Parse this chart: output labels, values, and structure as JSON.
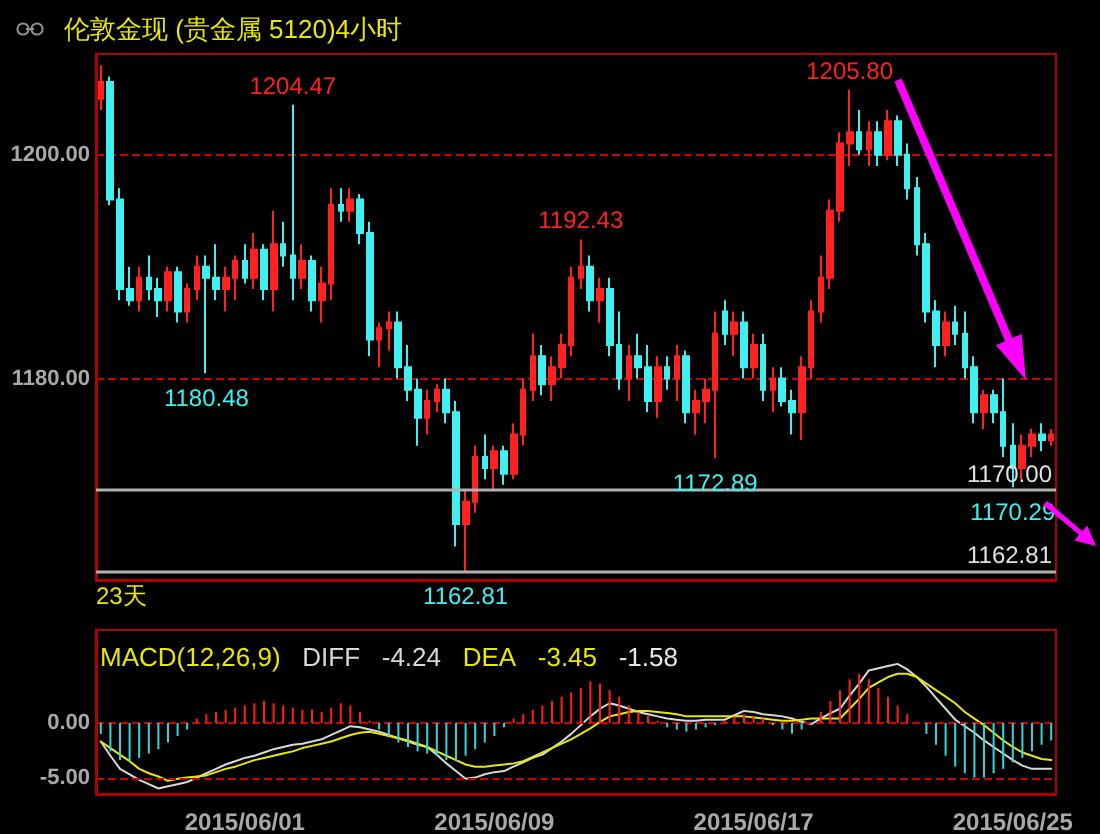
{
  "chart_data": [
    {
      "type": "candlestick",
      "title": "伦敦金现 (贵金属 5120)4小时",
      "categories": [
        null,
        null,
        null,
        null,
        null,
        null,
        null,
        null,
        null,
        null,
        null,
        null,
        null,
        null,
        null,
        "2015/06/01",
        null,
        null,
        null,
        null,
        null,
        null,
        null,
        null,
        null,
        null,
        null,
        null,
        null,
        null,
        null,
        null,
        null,
        null,
        null,
        null,
        null,
        null,
        null,
        null,
        null,
        "2015/06/09",
        null,
        null,
        null,
        null,
        null,
        null,
        null,
        null,
        null,
        null,
        null,
        null,
        null,
        null,
        null,
        null,
        null,
        null,
        null,
        null,
        null,
        null,
        null,
        null,
        null,
        null,
        "2015/06/17",
        null,
        null,
        null,
        null,
        null,
        null,
        null,
        null,
        null,
        null,
        null,
        null,
        null,
        null,
        null,
        null,
        null,
        null,
        null,
        null,
        null,
        null,
        null,
        null,
        null,
        null,
        "2015/06/25",
        null,
        null,
        null,
        null
      ],
      "ohlc": [
        [
          1205,
          1208,
          1204,
          1206.5
        ],
        [
          1206.5,
          1207,
          1195.5,
          1196
        ],
        [
          1196,
          1197,
          1187,
          1188
        ],
        [
          1188,
          1190,
          1186.5,
          1187
        ],
        [
          1187,
          1190,
          1186,
          1189
        ],
        [
          1189,
          1191,
          1187,
          1188
        ],
        [
          1188,
          1189,
          1185.5,
          1187
        ],
        [
          1187,
          1190,
          1186,
          1189.5
        ],
        [
          1189.5,
          1190,
          1185,
          1186
        ],
        [
          1186,
          1188.5,
          1185,
          1188
        ],
        [
          1188,
          1191,
          1187,
          1190
        ],
        [
          1190,
          1191,
          1180.48,
          1189
        ],
        [
          1189,
          1192,
          1187,
          1188
        ],
        [
          1188,
          1190,
          1186,
          1189
        ],
        [
          1189,
          1191,
          1187,
          1190.5
        ],
        [
          1190.5,
          1192,
          1188.5,
          1189
        ],
        [
          1189,
          1193,
          1188,
          1191.5
        ],
        [
          1191.5,
          1192,
          1187,
          1188
        ],
        [
          1188,
          1195,
          1186,
          1192
        ],
        [
          1192,
          1194,
          1190,
          1191
        ],
        [
          1191,
          1204.47,
          1187,
          1189
        ],
        [
          1189,
          1192,
          1188,
          1190.5
        ],
        [
          1190.5,
          1191,
          1186,
          1187
        ],
        [
          1187,
          1190,
          1185,
          1188.5
        ],
        [
          1188.5,
          1197,
          1187,
          1195.5
        ],
        [
          1195.5,
          1197,
          1194,
          1195
        ],
        [
          1195,
          1197,
          1194,
          1196
        ],
        [
          1196,
          1196.5,
          1192,
          1193
        ],
        [
          1193,
          1194,
          1182,
          1183.5
        ],
        [
          1183.5,
          1185,
          1181,
          1184.5
        ],
        [
          1184.5,
          1186,
          1182.5,
          1185
        ],
        [
          1185,
          1186,
          1180,
          1181
        ],
        [
          1181,
          1183,
          1178,
          1179
        ],
        [
          1179,
          1180,
          1174,
          1176.5
        ],
        [
          1176.5,
          1179,
          1175,
          1178
        ],
        [
          1178,
          1179.5,
          1177,
          1179
        ],
        [
          1179,
          1180,
          1176,
          1177
        ],
        [
          1177,
          1178,
          1165,
          1167
        ],
        [
          1167,
          1170,
          1162.81,
          1169
        ],
        [
          1169,
          1174,
          1168,
          1173
        ],
        [
          1173,
          1175,
          1171,
          1172
        ],
        [
          1172,
          1174,
          1170,
          1173.5
        ],
        [
          1173.5,
          1174,
          1170.5,
          1171.5
        ],
        [
          1171.5,
          1176,
          1171,
          1175
        ],
        [
          1175,
          1180,
          1174,
          1179
        ],
        [
          1179,
          1184,
          1178,
          1182
        ],
        [
          1182,
          1183,
          1178.5,
          1179.5
        ],
        [
          1179.5,
          1182,
          1178,
          1181
        ],
        [
          1181,
          1184,
          1180,
          1183
        ],
        [
          1183,
          1190,
          1182,
          1189
        ],
        [
          1189,
          1192.43,
          1188,
          1190
        ],
        [
          1190,
          1191,
          1186,
          1187
        ],
        [
          1187,
          1189,
          1185,
          1188
        ],
        [
          1188,
          1189,
          1182,
          1183
        ],
        [
          1183,
          1186,
          1179,
          1180
        ],
        [
          1180,
          1183,
          1178,
          1182
        ],
        [
          1182,
          1184,
          1180,
          1181
        ],
        [
          1181,
          1183,
          1177,
          1178
        ],
        [
          1178,
          1182,
          1176.5,
          1181
        ],
        [
          1181,
          1182,
          1179,
          1180
        ],
        [
          1180,
          1183,
          1178,
          1182
        ],
        [
          1182,
          1182.5,
          1176,
          1177
        ],
        [
          1177,
          1179,
          1175,
          1178
        ],
        [
          1178,
          1180,
          1176,
          1179
        ],
        [
          1179,
          1186,
          1172.89,
          1184
        ],
        [
          1186,
          1187,
          1183,
          1184
        ],
        [
          1184,
          1186,
          1182,
          1185
        ],
        [
          1185,
          1186,
          1180,
          1181
        ],
        [
          1181,
          1184,
          1180,
          1183
        ],
        [
          1183,
          1184,
          1178,
          1179
        ],
        [
          1179,
          1181,
          1177,
          1180
        ],
        [
          1180,
          1181,
          1177.5,
          1178
        ],
        [
          1178,
          1179,
          1175,
          1177
        ],
        [
          1177,
          1182,
          1174.5,
          1181
        ],
        [
          1181,
          1187,
          1180,
          1186
        ],
        [
          1186,
          1191,
          1185,
          1189
        ],
        [
          1189,
          1196,
          1188,
          1195
        ],
        [
          1195,
          1202,
          1194,
          1201
        ],
        [
          1201,
          1205.8,
          1199,
          1202
        ],
        [
          1202,
          1204,
          1200,
          1200.5
        ],
        [
          1200.5,
          1203,
          1199,
          1202
        ],
        [
          1202,
          1203,
          1199,
          1200
        ],
        [
          1200,
          1204,
          1199.5,
          1203
        ],
        [
          1203,
          1203.5,
          1199,
          1200
        ],
        [
          1200,
          1201,
          1196,
          1197
        ],
        [
          1197,
          1198,
          1191,
          1192
        ],
        [
          1192,
          1193,
          1185,
          1186
        ],
        [
          1186,
          1187,
          1181,
          1183
        ],
        [
          1183,
          1186,
          1182,
          1185
        ],
        [
          1185,
          1186.5,
          1183,
          1184
        ],
        [
          1184,
          1186,
          1180,
          1181
        ],
        [
          1181,
          1182,
          1176,
          1177
        ],
        [
          1177,
          1179,
          1175.5,
          1178.5
        ],
        [
          1178.5,
          1179,
          1176,
          1177
        ],
        [
          1177,
          1180,
          1173,
          1174
        ],
        [
          1174,
          1176,
          1170.29,
          1172
        ],
        [
          1172,
          1175,
          1171,
          1174
        ],
        [
          1174,
          1175.5,
          1173,
          1175
        ],
        [
          1175,
          1176,
          1173.5,
          1174.5
        ],
        [
          1174.5,
          1175.5,
          1174,
          1175
        ]
      ],
      "colors": [
        "#ff2020",
        "#40f0f0",
        "#40f0f0",
        "#40f0f0",
        "#ff2020",
        "#40f0f0",
        "#40f0f0",
        "#ff2020",
        "#40f0f0",
        "#ff2020",
        "#ff2020",
        "#40f0f0",
        "#40f0f0",
        "#ff2020",
        "#ff2020",
        "#40f0f0",
        "#ff2020",
        "#40f0f0",
        "#ff2020",
        "#40f0f0",
        "#40f0f0",
        "#ff2020",
        "#40f0f0",
        "#ff2020",
        "#ff2020",
        "#40f0f0",
        "#ff2020",
        "#40f0f0",
        "#40f0f0",
        "#ff2020",
        "#ff2020",
        "#40f0f0",
        "#40f0f0",
        "#40f0f0",
        "#ff2020",
        "#ff2020",
        "#40f0f0",
        "#40f0f0",
        "#ff2020",
        "#ff2020",
        "#40f0f0",
        "#ff2020",
        "#40f0f0",
        "#ff2020",
        "#ff2020",
        "#ff2020",
        "#40f0f0",
        "#ff2020",
        "#ff2020",
        "#ff2020",
        "#ff2020",
        "#40f0f0",
        "#ff2020",
        "#40f0f0",
        "#40f0f0",
        "#ff2020",
        "#40f0f0",
        "#40f0f0",
        "#ff2020",
        "#40f0f0",
        "#ff2020",
        "#40f0f0",
        "#ff2020",
        "#ff2020",
        "#ff2020",
        "#40f0f0",
        "#ff2020",
        "#40f0f0",
        "#ff2020",
        "#40f0f0",
        "#ff2020",
        "#40f0f0",
        "#40f0f0",
        "#ff2020",
        "#ff2020",
        "#ff2020",
        "#ff2020",
        "#ff2020",
        "#ff2020",
        "#40f0f0",
        "#ff2020",
        "#40f0f0",
        "#ff2020",
        "#40f0f0",
        "#40f0f0",
        "#40f0f0",
        "#40f0f0",
        "#40f0f0",
        "#ff2020",
        "#40f0f0",
        "#40f0f0",
        "#40f0f0",
        "#ff2020",
        "#40f0f0",
        "#40f0f0",
        "#40f0f0",
        "#ff2020",
        "#ff2020",
        "#40f0f0",
        "#ff2020"
      ],
      "value_labels": [
        null,
        null,
        null,
        null,
        null,
        null,
        null,
        null,
        null,
        null,
        null,
        "1180.48",
        null,
        null,
        null,
        null,
        null,
        null,
        null,
        null,
        "1204.47",
        null,
        null,
        null,
        null,
        null,
        null,
        null,
        null,
        null,
        null,
        null,
        null,
        null,
        null,
        null,
        null,
        null,
        "1162.81",
        null,
        null,
        null,
        null,
        null,
        null,
        null,
        null,
        null,
        null,
        null,
        "1192.43",
        null,
        null,
        null,
        null,
        null,
        null,
        null,
        null,
        null,
        null,
        null,
        null,
        null,
        "1172.89",
        null,
        null,
        null,
        null,
        null,
        null,
        null,
        null,
        null,
        null,
        null,
        null,
        null,
        "1205.80",
        null,
        null,
        null,
        null,
        null,
        null,
        null,
        null,
        null,
        null,
        null,
        null,
        null,
        null,
        null,
        null,
        "1170.29",
        null,
        null,
        null,
        null
      ],
      "ylim": [
        1162,
        1209
      ],
      "yticks": [
        {
          "value": 1180,
          "label": "1180.00"
        },
        {
          "value": 1200,
          "label": "1200.00"
        }
      ],
      "grid": "y",
      "tick_labels": "y",
      "ref_lines": [
        {
          "axis": "y",
          "value": 1170,
          "label": "1170.00",
          "color": "#b0b0b0"
        },
        {
          "axis": "y",
          "value": 1162.81,
          "label": "1162.81",
          "color": "#b0b0b0"
        }
      ],
      "annotations": [
        "23天"
      ]
    },
    {
      "type": "line",
      "title": "MACD(12,26,9)",
      "categories": [
        null,
        null,
        null,
        null,
        null,
        null,
        null,
        null,
        null,
        null,
        null,
        null,
        null,
        null,
        null,
        "2015/06/01",
        null,
        null,
        null,
        null,
        null,
        null,
        null,
        null,
        null,
        null,
        null,
        null,
        null,
        null,
        null,
        null,
        null,
        null,
        null,
        null,
        null,
        null,
        null,
        null,
        null,
        "2015/06/09",
        null,
        null,
        null,
        null,
        null,
        null,
        null,
        null,
        null,
        null,
        null,
        null,
        null,
        null,
        null,
        null,
        null,
        null,
        null,
        null,
        null,
        null,
        null,
        null,
        null,
        null,
        "2015/06/17",
        null,
        null,
        null,
        null,
        null,
        null,
        null,
        null,
        null,
        null,
        null,
        null,
        null,
        null,
        null,
        null,
        null,
        null,
        null,
        null,
        null,
        null,
        null,
        null,
        null,
        null,
        "2015/06/25",
        null,
        null,
        null,
        null
      ],
      "series": [
        {
          "name": "DIFF",
          "color": "#d8d8d8",
          "values": [
            -1.7,
            -3.0,
            -4.2,
            -4.7,
            -5.2,
            -5.6,
            -6.0,
            -5.8,
            -5.6,
            -5.4,
            -5.0,
            -4.6,
            -4.2,
            -3.8,
            -3.5,
            -3.2,
            -3.0,
            -2.7,
            -2.4,
            -2.2,
            -2.0,
            -1.9,
            -1.7,
            -1.5,
            -1.1,
            -0.7,
            -0.3,
            -0.4,
            -0.6,
            -0.8,
            -1.1,
            -1.4,
            -1.7,
            -2.0,
            -2.2,
            -2.9,
            -3.7,
            -4.4,
            -5.1,
            -5.0,
            -4.7,
            -4.5,
            -4.4,
            -4.0,
            -3.6,
            -3.2,
            -2.9,
            -2.3,
            -1.7,
            -1.0,
            -0.2,
            0.6,
            1.3,
            1.8,
            1.6,
            1.3,
            1.0,
            0.8,
            0.6,
            0.4,
            0.3,
            0.2,
            0.2,
            0.3,
            0.3,
            0.3,
            0.7,
            1.1,
            1.0,
            0.8,
            0.7,
            0.6,
            0.4,
            0.1,
            -0.1,
            0.4,
            0.9,
            1.3,
            2.5,
            3.6,
            4.8,
            5.0,
            5.2,
            5.4,
            4.9,
            4.2,
            3.3,
            2.3,
            1.3,
            0.3,
            -0.3,
            -0.9,
            -1.6,
            -2.2,
            -2.8,
            -3.4,
            -3.9,
            -4.2,
            -4.2,
            -4.2
          ]
        },
        {
          "name": "DEA",
          "color": "#e8e800",
          "values": [
            -1.7,
            -2.3,
            -2.9,
            -3.5,
            -4.2,
            -4.6,
            -4.9,
            -5.3,
            -5.1,
            -5.0,
            -4.9,
            -4.8,
            -4.5,
            -4.2,
            -4.0,
            -3.7,
            -3.4,
            -3.2,
            -3.0,
            -2.8,
            -2.6,
            -2.3,
            -2.1,
            -1.9,
            -1.7,
            -1.4,
            -1.1,
            -0.9,
            -0.8,
            -1.0,
            -1.2,
            -1.4,
            -1.6,
            -1.9,
            -2.2,
            -2.6,
            -3.0,
            -3.4,
            -3.8,
            -4.0,
            -4.0,
            -3.9,
            -3.8,
            -3.7,
            -3.5,
            -3.1,
            -2.7,
            -2.3,
            -1.9,
            -1.5,
            -1.0,
            -0.5,
            0.1,
            0.6,
            0.8,
            1.0,
            1.1,
            1.1,
            1.0,
            0.9,
            0.8,
            0.6,
            0.6,
            0.6,
            0.6,
            0.6,
            0.6,
            0.6,
            0.5,
            0.4,
            0.3,
            0.2,
            0.2,
            0.3,
            0.4,
            0.4,
            0.4,
            0.4,
            1.3,
            2.2,
            3.2,
            3.7,
            4.2,
            4.5,
            4.5,
            4.2,
            3.6,
            3.0,
            2.4,
            1.8,
            1.0,
            0.4,
            -0.2,
            -0.9,
            -1.6,
            -2.2,
            -2.7,
            -3.0,
            -3.3,
            -3.4
          ]
        },
        {
          "type": "bar",
          "values": [
            -1.0,
            -2.6,
            -3.4,
            -3.5,
            -3.2,
            -2.8,
            -2.4,
            -1.8,
            -1.2,
            -0.6,
            0.4,
            0.8,
            1.0,
            1.2,
            1.4,
            1.6,
            1.8,
            2.0,
            1.8,
            1.6,
            1.4,
            1.2,
            1.2,
            1.0,
            1.4,
            1.8,
            1.6,
            1.0,
            0.2,
            -0.6,
            -1.2,
            -1.8,
            -2.2,
            -2.6,
            -2.8,
            -3.0,
            -3.4,
            -3.5,
            -3.0,
            -2.4,
            -1.8,
            -1.2,
            -0.4,
            0.4,
            0.8,
            1.2,
            1.6,
            2.0,
            2.4,
            2.8,
            3.2,
            3.8,
            3.6,
            3.0,
            2.4,
            1.6,
            1.0,
            0.6,
            0.2,
            -0.4,
            -0.6,
            -0.8,
            -0.6,
            -0.4,
            -0.2,
            0.2,
            0.6,
            0.8,
            0.6,
            0.4,
            -0.2,
            -0.6,
            -1.0,
            -0.6,
            -0.2,
            1.0,
            2.0,
            3.0,
            4.0,
            4.5,
            4.0,
            3.2,
            2.4,
            1.6,
            0.8,
            0,
            -1.0,
            -2.0,
            -3.0,
            -4.0,
            -4.6,
            -5.0,
            -5.0,
            -4.6,
            -4.2,
            -3.6,
            -3.2,
            -2.6,
            -2.0,
            -1.6
          ],
          "colors": [
            "#30d8d8",
            "#30d8d8",
            "#30d8d8",
            "#30d8d8",
            "#30d8d8",
            "#30d8d8",
            "#30d8d8",
            "#30d8d8",
            "#30d8d8",
            "#30d8d8",
            "#ff2020",
            "#ff2020",
            "#ff2020",
            "#ff2020",
            "#ff2020",
            "#ff2020",
            "#ff2020",
            "#ff2020",
            "#ff2020",
            "#ff2020",
            "#ff2020",
            "#ff2020",
            "#ff2020",
            "#ff2020",
            "#ff2020",
            "#ff2020",
            "#ff2020",
            "#ff2020",
            "#ff2020",
            "#30d8d8",
            "#30d8d8",
            "#30d8d8",
            "#30d8d8",
            "#30d8d8",
            "#30d8d8",
            "#30d8d8",
            "#30d8d8",
            "#30d8d8",
            "#30d8d8",
            "#30d8d8",
            "#30d8d8",
            "#30d8d8",
            "#30d8d8",
            "#ff2020",
            "#ff2020",
            "#ff2020",
            "#ff2020",
            "#ff2020",
            "#ff2020",
            "#ff2020",
            "#ff2020",
            "#ff2020",
            "#ff2020",
            "#ff2020",
            "#ff2020",
            "#ff2020",
            "#ff2020",
            "#ff2020",
            "#ff2020",
            "#30d8d8",
            "#30d8d8",
            "#30d8d8",
            "#30d8d8",
            "#30d8d8",
            "#30d8d8",
            "#ff2020",
            "#ff2020",
            "#ff2020",
            "#ff2020",
            "#ff2020",
            "#30d8d8",
            "#30d8d8",
            "#30d8d8",
            "#30d8d8",
            "#30d8d8",
            "#ff2020",
            "#ff2020",
            "#ff2020",
            "#ff2020",
            "#ff2020",
            "#ff2020",
            "#ff2020",
            "#ff2020",
            "#ff2020",
            "#ff2020",
            "#ff2020",
            "#30d8d8",
            "#30d8d8",
            "#30d8d8",
            "#30d8d8",
            "#30d8d8",
            "#30d8d8",
            "#30d8d8",
            "#30d8d8",
            "#30d8d8",
            "#30d8d8",
            "#30d8d8",
            "#30d8d8",
            "#30d8d8",
            "#30d8d8"
          ]
        }
      ],
      "ylim": [
        -6.5,
        8.5
      ],
      "yticks": [
        {
          "value": -5,
          "label": "-5.00"
        },
        {
          "value": 0,
          "label": "0.00"
        }
      ],
      "ref_lines": [
        {
          "axis": "y",
          "value": 0,
          "color": "#d00000",
          "line_style": "dashed"
        },
        {
          "axis": "y",
          "value": -5,
          "color": "#d00000",
          "line_style": "dashed"
        }
      ],
      "marker": "none",
      "annotations": [
        "-4.24",
        "-3.45",
        "-1.58"
      ]
    }
  ]
}
